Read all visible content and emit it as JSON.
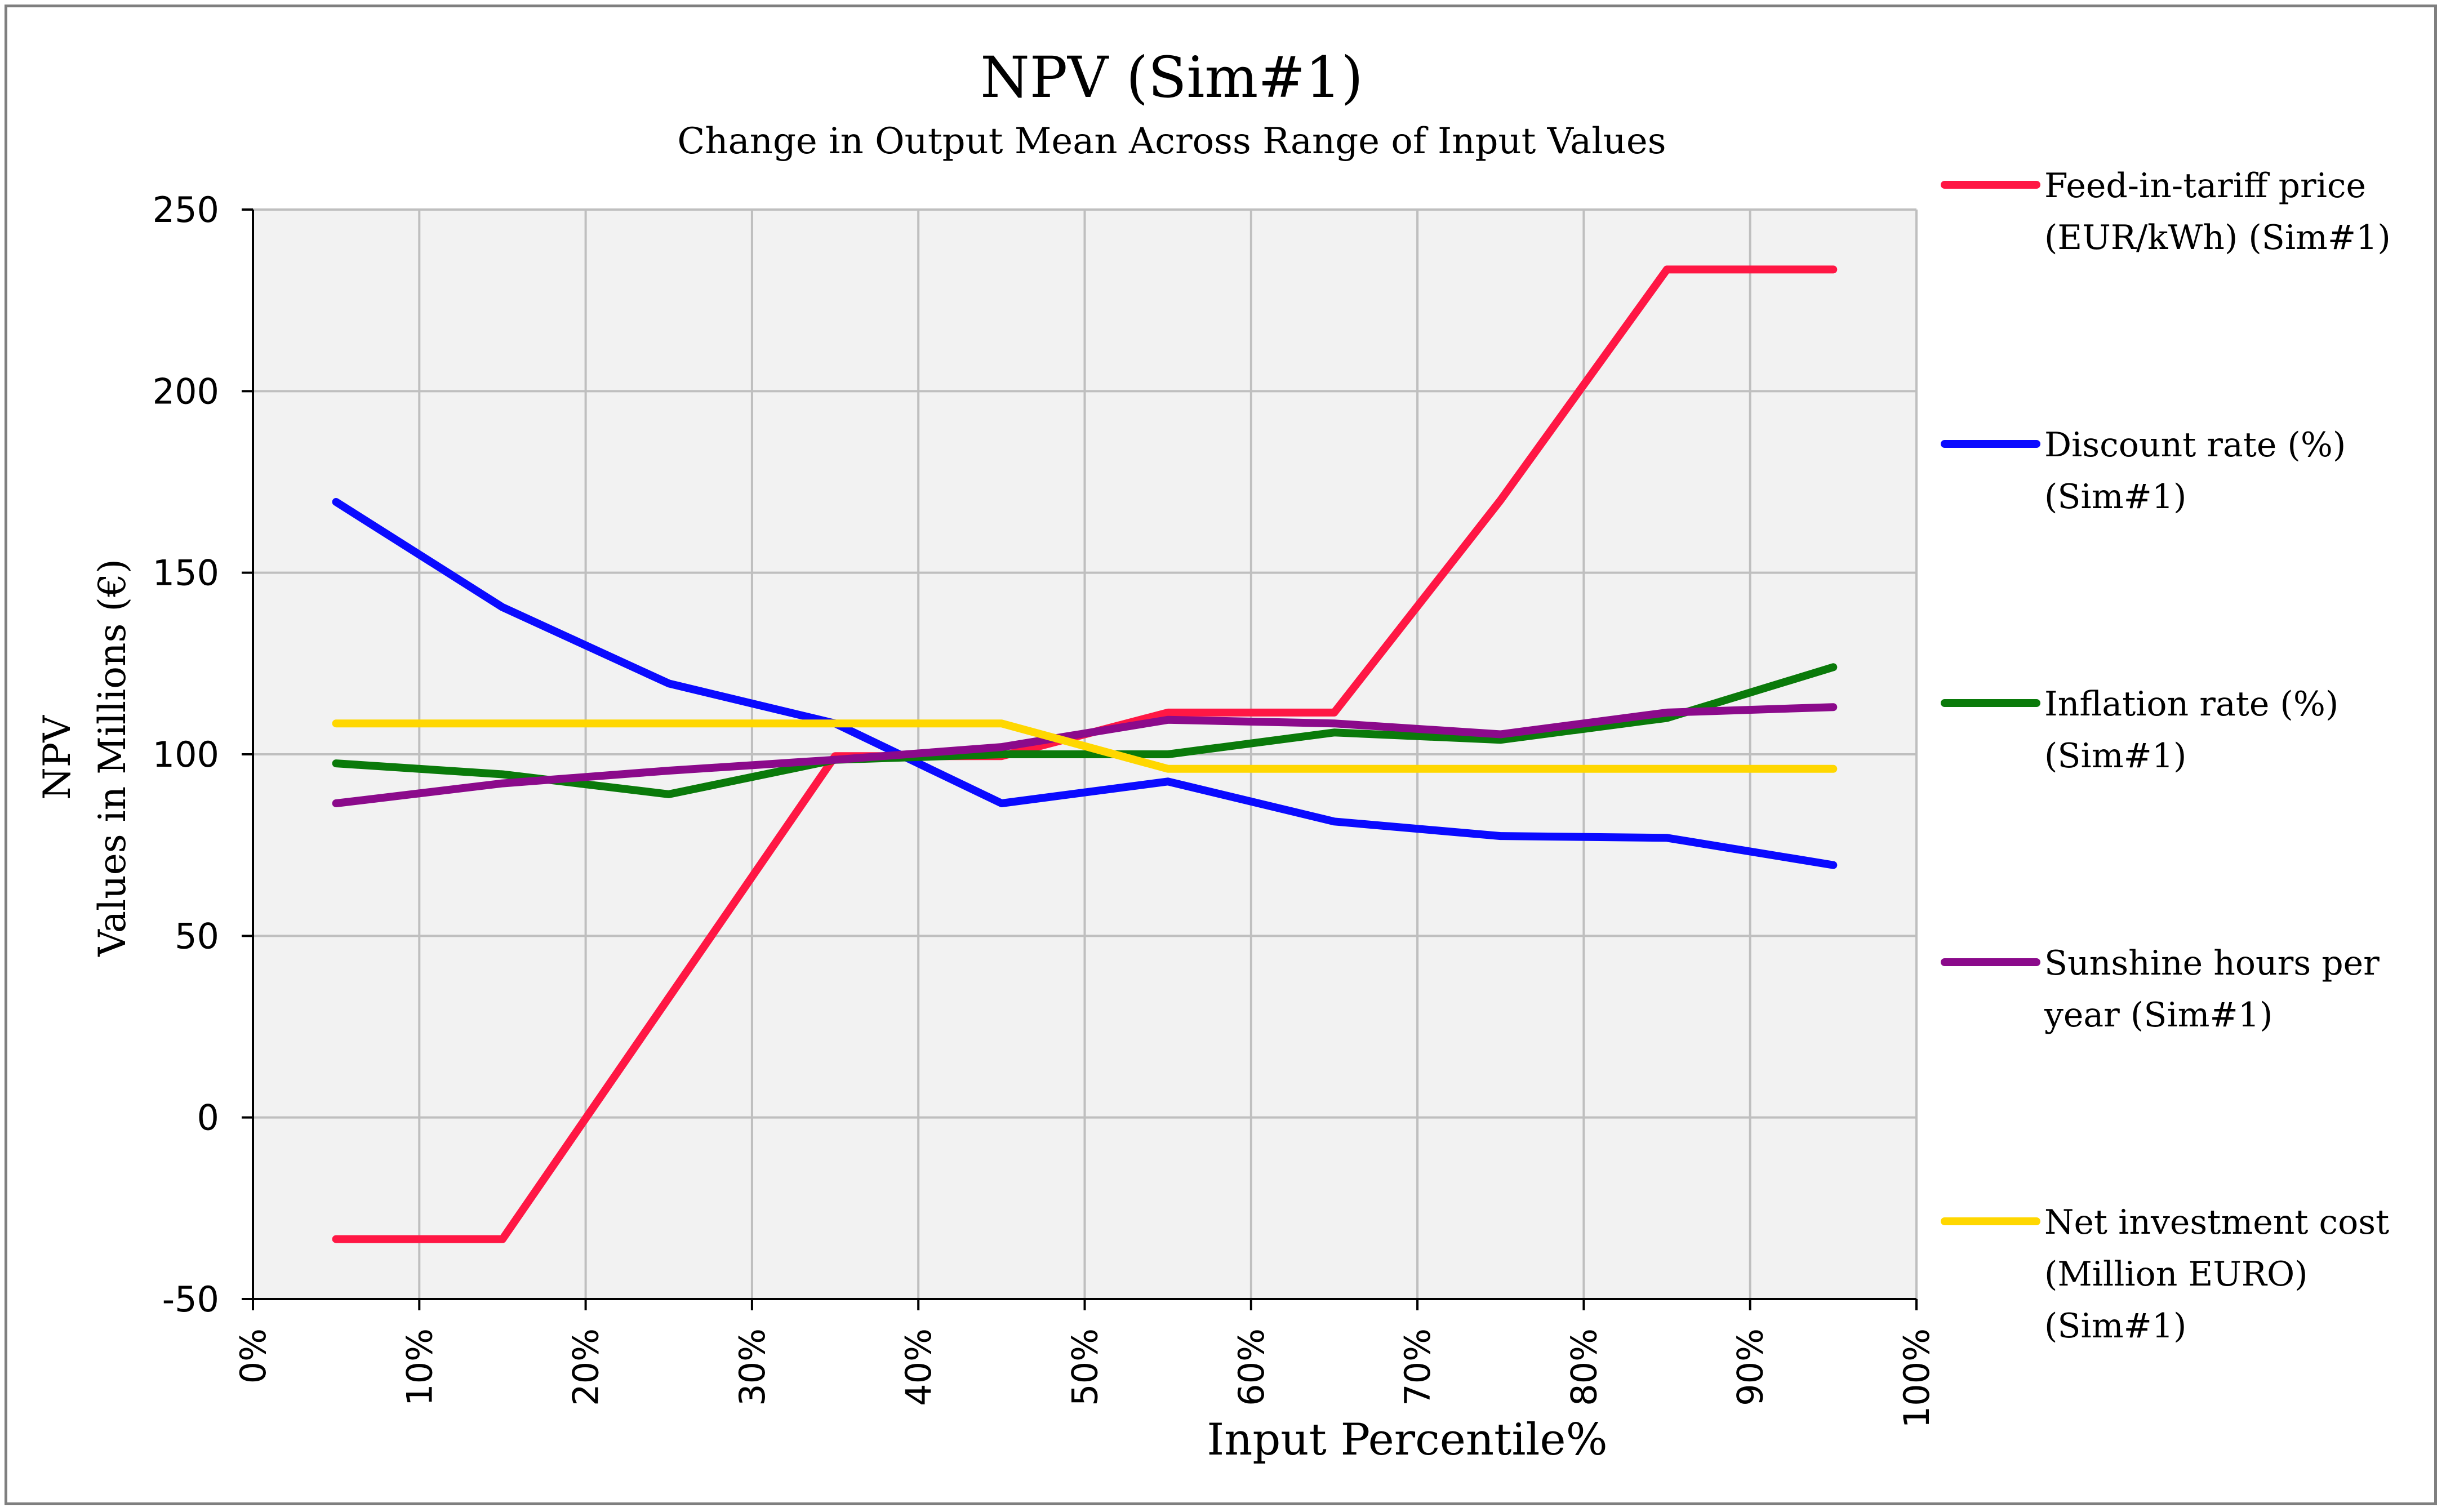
{
  "chart_data": {
    "type": "line",
    "title": "NPV (Sim#1)",
    "subtitle": "Change in Output Mean Across Range of Input Values",
    "xlabel": "Input Percentile%",
    "ylabel_line1": "NPV",
    "ylabel_line2": "Values in Millions (€)",
    "xlim": [
      0,
      100
    ],
    "ylim": [
      -50,
      250
    ],
    "x_ticks": [
      0,
      10,
      20,
      30,
      40,
      50,
      60,
      70,
      80,
      90,
      100
    ],
    "x_tick_labels": [
      "0%",
      "10%",
      "20%",
      "30%",
      "40%",
      "50%",
      "60%",
      "70%",
      "80%",
      "90%",
      "100%"
    ],
    "y_ticks": [
      -50,
      0,
      50,
      100,
      150,
      200,
      250
    ],
    "y_tick_labels": [
      "-50",
      "0",
      "50",
      "100",
      "150",
      "200",
      "250"
    ],
    "grid": true,
    "legend_position": "right",
    "x": [
      5,
      15,
      25,
      35,
      45,
      55,
      65,
      75,
      85,
      95
    ],
    "series": [
      {
        "name": "Feed-in-tariff price (EUR/kWh) (Sim#1)",
        "legend_lines": [
          "Feed-in-tariff price",
          "(EUR/kWh) (Sim#1)"
        ],
        "color": "#ff1744",
        "values": [
          -33.5,
          -33.5,
          33,
          99.5,
          99.5,
          111.5,
          111.5,
          170,
          233.5,
          233.5
        ]
      },
      {
        "name": "Discount rate (%) (Sim#1)",
        "legend_lines": [
          "Discount rate (%)",
          "(Sim#1)"
        ],
        "color": "#0a0aff",
        "values": [
          169.5,
          140.5,
          119.5,
          108.5,
          86.5,
          92.5,
          81.5,
          77.5,
          77,
          69.5
        ]
      },
      {
        "name": "Inflation rate (%) (Sim#1)",
        "legend_lines": [
          "Inflation rate (%)",
          "(Sim#1)"
        ],
        "color": "#0a7a0a",
        "values": [
          97.5,
          94.5,
          89,
          98.5,
          100,
          100,
          106,
          104,
          110,
          124
        ]
      },
      {
        "name": "Sunshine hours per year (Sim#1)",
        "legend_lines": [
          "Sunshine hours per",
          "year (Sim#1)"
        ],
        "color": "#8b0a8b",
        "values": [
          86.5,
          92,
          95.5,
          98.5,
          102,
          109.5,
          108.5,
          105.5,
          111.5,
          113
        ]
      },
      {
        "name": "Net investment cost (Million EURO) (Sim#1)",
        "legend_lines": [
          "Net investment cost",
          "(Million EURO)",
          "(Sim#1)"
        ],
        "color": "#ffd700",
        "values": [
          108.5,
          108.5,
          108.5,
          108.5,
          108.5,
          96,
          96,
          96,
          96,
          96
        ]
      }
    ]
  },
  "colors": {
    "plot_background": "#f2f2f2",
    "grid": "#bfbfbf",
    "axis": "#000000",
    "frame": "#7f7f7f"
  }
}
